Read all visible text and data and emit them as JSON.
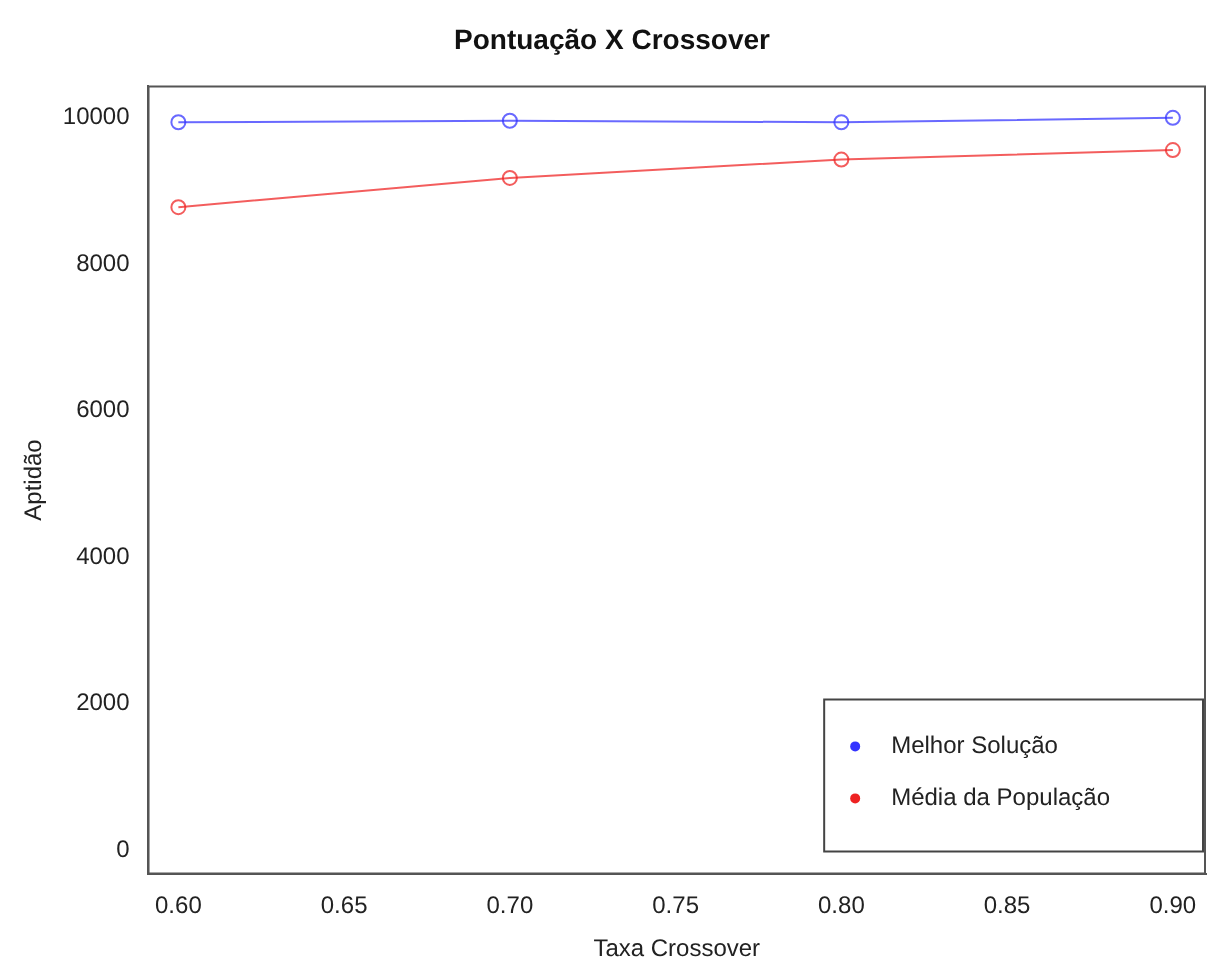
{
  "chart_data": {
    "type": "line",
    "title": "Pontuação X Crossover",
    "xlabel": "Taxa Crossover",
    "ylabel": "Aptidão",
    "x": [
      0.6,
      0.7,
      0.8,
      0.9
    ],
    "series": [
      {
        "name": "Melhor Solução",
        "color": "#3333ff",
        "values": [
          9940,
          9960,
          9940,
          10000
        ]
      },
      {
        "name": "Média da População",
        "color": "#ee2222",
        "values": [
          8780,
          9180,
          9430,
          9560
        ]
      }
    ],
    "xlim": [
      0.5907,
      0.91
    ],
    "xticks": [
      {
        "value": 0.6,
        "label": "0.60"
      },
      {
        "value": 0.65,
        "label": "0.65"
      },
      {
        "value": 0.7,
        "label": "0.70"
      },
      {
        "value": 0.75,
        "label": "0.75"
      },
      {
        "value": 0.8,
        "label": "0.80"
      },
      {
        "value": 0.85,
        "label": "0.85"
      },
      {
        "value": 0.9,
        "label": "0.90"
      }
    ],
    "ylim": [
      -330,
      10440
    ],
    "yticks": [
      0,
      2000,
      4000,
      6000,
      8000,
      10000
    ],
    "grid": false,
    "legend": "bottom right",
    "marker": "circle",
    "line_style": "solid"
  }
}
